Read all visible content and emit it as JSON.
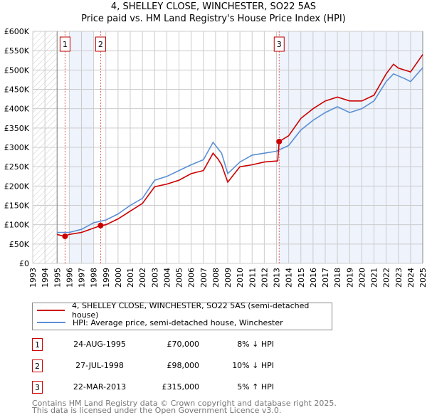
{
  "title": "4, SHELLEY CLOSE, WINCHESTER, SO22 5AS",
  "subtitle": "Price paid vs. HM Land Registry's House Price Index (HPI)",
  "chart_data": {
    "type": "line",
    "xlim": [
      1993,
      2025
    ],
    "ylim": [
      0,
      600000
    ],
    "x_ticks": [
      "1993",
      "1994",
      "1995",
      "1996",
      "1997",
      "1998",
      "1999",
      "2000",
      "2001",
      "2002",
      "2003",
      "2004",
      "2005",
      "2006",
      "2007",
      "2008",
      "2009",
      "2010",
      "2011",
      "2012",
      "2013",
      "2014",
      "2015",
      "2016",
      "2017",
      "2018",
      "2019",
      "2020",
      "2021",
      "2022",
      "2023",
      "2024",
      "2025"
    ],
    "y_ticks": [
      {
        "v": 0,
        "label": "£0"
      },
      {
        "v": 50000,
        "label": "£50K"
      },
      {
        "v": 100000,
        "label": "£100K"
      },
      {
        "v": 150000,
        "label": "£150K"
      },
      {
        "v": 200000,
        "label": "£200K"
      },
      {
        "v": 250000,
        "label": "£250K"
      },
      {
        "v": 300000,
        "label": "£300K"
      },
      {
        "v": 350000,
        "label": "£350K"
      },
      {
        "v": 400000,
        "label": "£400K"
      },
      {
        "v": 450000,
        "label": "£450K"
      },
      {
        "v": 500000,
        "label": "£500K"
      },
      {
        "v": 550000,
        "label": "£550K"
      },
      {
        "v": 600000,
        "label": "£600K"
      }
    ],
    "series": [
      {
        "name": "4, SHELLEY CLOSE, WINCHESTER, SO22 5AS (semi-detached house)",
        "color": "#cc0000",
        "x": [
          1995,
          1995.6,
          1996,
          1997,
          1998.6,
          1999,
          2000,
          2001,
          2002,
          2003,
          2004,
          2005,
          2006,
          2007,
          2007.8,
          2008.2,
          2008.5,
          2009,
          2010,
          2011,
          2012,
          2013.1,
          2013.22,
          2014,
          2015,
          2016,
          2017,
          2018,
          2019,
          2020,
          2021,
          2022,
          2022.6,
          2023,
          2024,
          2025
        ],
        "y": [
          75000,
          70000,
          75000,
          80000,
          98000,
          100000,
          115000,
          135000,
          155000,
          198000,
          205000,
          215000,
          232000,
          240000,
          285000,
          270000,
          255000,
          210000,
          250000,
          255000,
          262000,
          265000,
          315000,
          330000,
          375000,
          400000,
          420000,
          430000,
          420000,
          420000,
          435000,
          490000,
          515000,
          505000,
          495000,
          540000
        ]
      },
      {
        "name": "HPI: Average price, semi-detached house, Winchester",
        "color": "#5b8fd4",
        "x": [
          1995,
          1996,
          1997,
          1998,
          1999,
          2000,
          2001,
          2002,
          2003,
          2004,
          2005,
          2006,
          2007,
          2007.8,
          2008.5,
          2009,
          2010,
          2011,
          2012,
          2013,
          2014,
          2015,
          2016,
          2017,
          2018,
          2019,
          2020,
          2021,
          2022,
          2022.6,
          2023.5,
          2024,
          2025
        ],
        "y": [
          80000,
          80000,
          88000,
          105000,
          112000,
          128000,
          150000,
          168000,
          215000,
          225000,
          240000,
          255000,
          268000,
          313000,
          285000,
          232000,
          262000,
          280000,
          285000,
          290000,
          305000,
          345000,
          370000,
          390000,
          405000,
          390000,
          400000,
          420000,
          470000,
          490000,
          478000,
          470000,
          506000
        ]
      }
    ],
    "sales": [
      {
        "id": "1",
        "x": 1995.65,
        "y": 70000
      },
      {
        "id": "2",
        "x": 1998.57,
        "y": 98000
      },
      {
        "id": "3",
        "x": 2013.22,
        "y": 315000
      }
    ],
    "shaded_ranges": [
      [
        1996,
        1998
      ],
      [
        2013.22,
        2025
      ]
    ],
    "hatched_range": [
      1993,
      1995
    ],
    "grid": true
  },
  "legend": [
    {
      "label": "4, SHELLEY CLOSE, WINCHESTER, SO22 5AS (semi-detached house)",
      "color": "#cc0000"
    },
    {
      "label": "HPI: Average price, semi-detached house, Winchester",
      "color": "#5b8fd4"
    }
  ],
  "transactions": [
    {
      "id": "1",
      "date": "24-AUG-1995",
      "price": "£70,000",
      "hpi": "8% ↓ HPI"
    },
    {
      "id": "2",
      "date": "27-JUL-1998",
      "price": "£98,000",
      "hpi": "10% ↓ HPI"
    },
    {
      "id": "3",
      "date": "22-MAR-2013",
      "price": "£315,000",
      "hpi": "5% ↑ HPI"
    }
  ],
  "footer": [
    "Contains HM Land Registry data © Crown copyright and database right 2025.",
    "This data is licensed under the Open Government Licence v3.0."
  ]
}
